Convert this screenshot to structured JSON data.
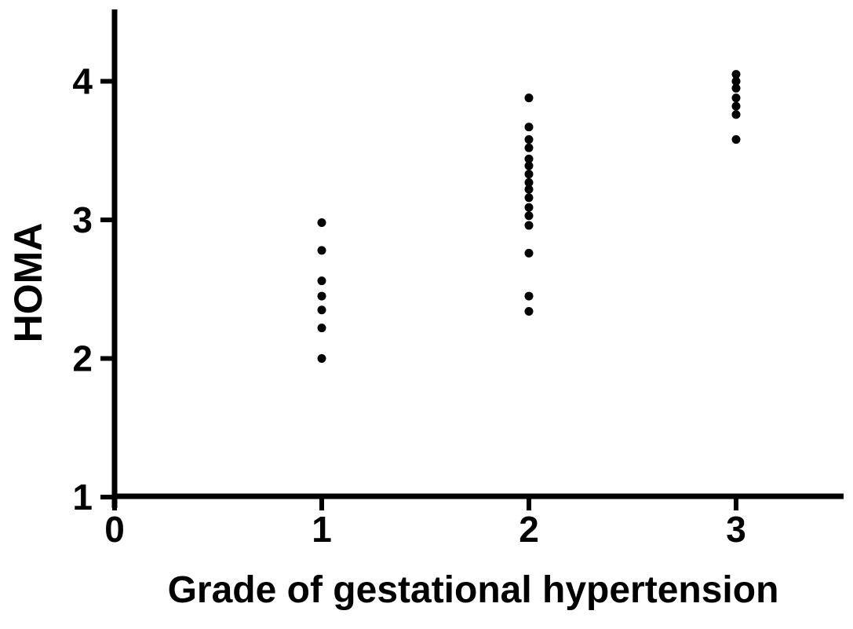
{
  "figure": {
    "background_color": "#ffffff",
    "foreground_color": "#000000"
  },
  "chart_data": {
    "type": "scatter",
    "title": "",
    "xlabel": "Grade of gestational hypertension",
    "ylabel": "HOMA",
    "xlim": [
      0,
      3.5
    ],
    "ylim": [
      1,
      4.5
    ],
    "grid": false,
    "legend": null,
    "marker": {
      "shape": "circle",
      "color": "#000000",
      "radius_px": 5.5
    },
    "x_ticks": [
      {
        "value": 0,
        "label": "0"
      },
      {
        "value": 1,
        "label": "1"
      },
      {
        "value": 2,
        "label": "2"
      },
      {
        "value": 3,
        "label": "3"
      }
    ],
    "y_ticks": [
      {
        "value": 1,
        "label": "1"
      },
      {
        "value": 2,
        "label": "2"
      },
      {
        "value": 3,
        "label": "3"
      },
      {
        "value": 4,
        "label": "4"
      }
    ],
    "points": [
      {
        "x": 1,
        "values": [
          2.98,
          2.78,
          2.56,
          2.45,
          2.35,
          2.22,
          2.0
        ]
      },
      {
        "x": 2,
        "values": [
          3.88,
          3.67,
          3.58,
          3.52,
          3.44,
          3.39,
          3.33,
          3.27,
          3.22,
          3.16,
          3.09,
          3.03,
          2.96,
          2.76,
          2.45,
          2.34
        ]
      },
      {
        "x": 3,
        "values": [
          4.05,
          4.0,
          3.95,
          3.88,
          3.82,
          3.76,
          3.58
        ]
      }
    ]
  }
}
